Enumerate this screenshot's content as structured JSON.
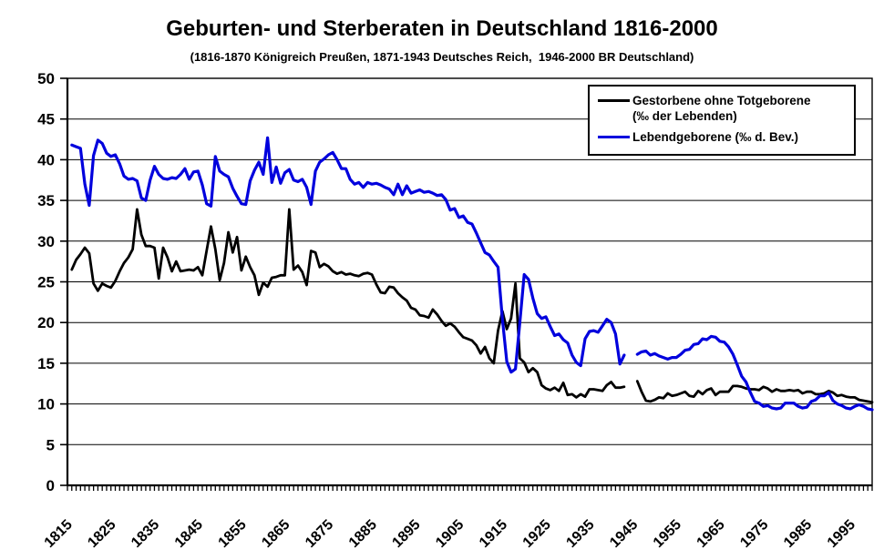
{
  "chart_data": {
    "type": "line",
    "title": "Geburten- und Sterberaten in Deutschland 1816-2000",
    "subtitle": "(1816-1870 Königreich Preußen, 1871-1943 Deutsches Reich,  1946-2000 BR Deutschland)",
    "grid": "horizontal-only",
    "legend_position": "top-right-inside",
    "x_axis": {
      "min": 1815,
      "max": 2000,
      "minor_tick_step_years": 1,
      "labels": [
        1815,
        1825,
        1835,
        1845,
        1855,
        1865,
        1875,
        1885,
        1895,
        1905,
        1915,
        1925,
        1935,
        1945,
        1955,
        1965,
        1975,
        1985,
        1995
      ]
    },
    "y_axis": {
      "min": 0,
      "max": 50,
      "tick_step": 5,
      "ticks": [
        0,
        5,
        10,
        15,
        20,
        25,
        30,
        35,
        40,
        45,
        50
      ]
    },
    "gap_years": [
      1944,
      1945
    ],
    "series": [
      {
        "name": "Gestorbene ohne Totgeborene (‰ der Lebenden)",
        "color": "#000000",
        "width": 2.8,
        "start_year": 1816,
        "values": [
          26.5,
          27.7,
          28.4,
          29.2,
          28.5,
          24.8,
          23.9,
          24.8,
          24.5,
          24.3,
          25.1,
          26.3,
          27.3,
          28.0,
          29.0,
          33.9,
          30.8,
          29.4,
          29.4,
          29.2,
          25.4,
          29.2,
          28.0,
          26.3,
          27.5,
          26.3,
          26.4,
          26.5,
          26.4,
          26.8,
          25.8,
          28.8,
          31.8,
          29.0,
          25.2,
          27.3,
          31.1,
          28.6,
          30.5,
          26.4,
          28.1,
          26.8,
          25.8,
          23.4,
          24.9,
          24.4,
          25.5,
          25.6,
          25.8,
          25.8,
          33.9,
          26.5,
          27.0,
          26.2,
          24.6,
          28.8,
          28.6,
          26.8,
          27.2,
          26.9,
          26.3,
          26.0,
          26.2,
          25.9,
          26.0,
          25.8,
          25.7,
          26.0,
          26.1,
          25.9,
          24.7,
          23.7,
          23.6,
          24.4,
          24.3,
          23.6,
          23.1,
          22.7,
          21.8,
          21.6,
          20.9,
          20.8,
          20.6,
          21.6,
          21.0,
          20.2,
          19.6,
          19.9,
          19.5,
          18.8,
          18.2,
          18.0,
          17.8,
          17.2,
          16.2,
          17.0,
          15.6,
          15.0,
          19.0,
          21.4,
          19.2,
          20.5,
          24.8,
          15.6,
          15.1,
          13.9,
          14.4,
          13.9,
          12.3,
          11.9,
          11.7,
          12.0,
          11.6,
          12.6,
          11.1,
          11.2,
          10.8,
          11.2,
          10.9,
          11.8,
          11.8,
          11.7,
          11.6,
          12.3,
          12.7,
          12.0,
          12.0,
          12.1,
          null,
          null,
          12.8,
          11.5,
          10.4,
          10.3,
          10.5,
          10.8,
          10.7,
          11.3,
          11.0,
          11.1,
          11.3,
          11.5,
          11.0,
          10.9,
          11.6,
          11.2,
          11.7,
          11.9,
          11.1,
          11.5,
          11.5,
          11.5,
          12.2,
          12.2,
          12.1,
          11.9,
          11.8,
          11.8,
          11.7,
          12.1,
          11.9,
          11.5,
          11.8,
          11.6,
          11.6,
          11.7,
          11.6,
          11.7,
          11.3,
          11.5,
          11.5,
          11.2,
          11.2,
          11.3,
          11.6,
          11.4,
          11.0,
          11.1,
          10.9,
          10.8,
          10.8,
          10.5,
          10.4,
          10.3,
          10.2
        ]
      },
      {
        "name": "Lebendgeborene (‰ d. Bev.)",
        "color": "#0000dd",
        "width": 3.2,
        "start_year": 1816,
        "values": [
          41.8,
          41.6,
          41.4,
          37.0,
          34.4,
          40.5,
          42.4,
          42.0,
          40.8,
          40.4,
          40.6,
          39.5,
          38.0,
          37.6,
          37.7,
          37.4,
          35.3,
          35.0,
          37.5,
          39.2,
          38.2,
          37.7,
          37.6,
          37.8,
          37.7,
          38.2,
          38.9,
          37.6,
          38.5,
          38.6,
          36.9,
          34.6,
          34.3,
          40.4,
          38.6,
          38.2,
          37.9,
          36.5,
          35.5,
          34.6,
          34.5,
          37.4,
          38.7,
          39.7,
          38.2,
          42.7,
          37.2,
          39.1,
          37.1,
          38.4,
          38.8,
          37.5,
          37.3,
          37.6,
          36.6,
          34.5,
          38.6,
          39.7,
          40.1,
          40.6,
          40.9,
          40.0,
          38.9,
          38.9,
          37.6,
          37.0,
          37.2,
          36.6,
          37.2,
          37.0,
          37.1,
          36.9,
          36.6,
          36.4,
          35.7,
          37.0,
          35.7,
          36.8,
          35.9,
          36.1,
          36.3,
          36.0,
          36.1,
          35.9,
          35.6,
          35.7,
          35.1,
          33.8,
          34.0,
          32.9,
          33.1,
          32.3,
          32.1,
          31.0,
          29.8,
          28.6,
          28.3,
          27.5,
          26.8,
          20.4,
          15.2,
          13.9,
          14.3,
          20.0,
          25.9,
          25.3,
          23.0,
          21.1,
          20.5,
          20.7,
          19.5,
          18.4,
          18.6,
          17.9,
          17.5,
          16.0,
          15.1,
          14.7,
          18.0,
          18.9,
          19.0,
          18.8,
          19.6,
          20.4,
          20.0,
          18.6,
          14.9,
          16.0,
          null,
          null,
          16.1,
          16.4,
          16.5,
          16.0,
          16.2,
          15.9,
          15.7,
          15.5,
          15.7,
          15.7,
          16.1,
          16.6,
          16.7,
          17.3,
          17.4,
          18.0,
          17.9,
          18.3,
          18.2,
          17.7,
          17.6,
          17.0,
          16.1,
          14.8,
          13.4,
          12.7,
          11.4,
          10.3,
          10.1,
          9.7,
          9.8,
          9.5,
          9.4,
          9.5,
          10.1,
          10.1,
          10.1,
          9.7,
          9.5,
          9.6,
          10.3,
          10.5,
          11.0,
          11.0,
          11.4,
          10.4,
          10.0,
          9.8,
          9.5,
          9.4,
          9.7,
          9.9,
          9.7,
          9.4,
          9.3
        ]
      }
    ]
  },
  "legend": {
    "items": [
      {
        "label_line1": "Gestorbene ohne Totgeborene",
        "label_line2": "(‰ der Lebenden)",
        "color": "#000000"
      },
      {
        "label_line1": "Lebendgeborene (‰ d. Bev.)",
        "label_line2": "",
        "color": "#0000dd"
      }
    ]
  }
}
